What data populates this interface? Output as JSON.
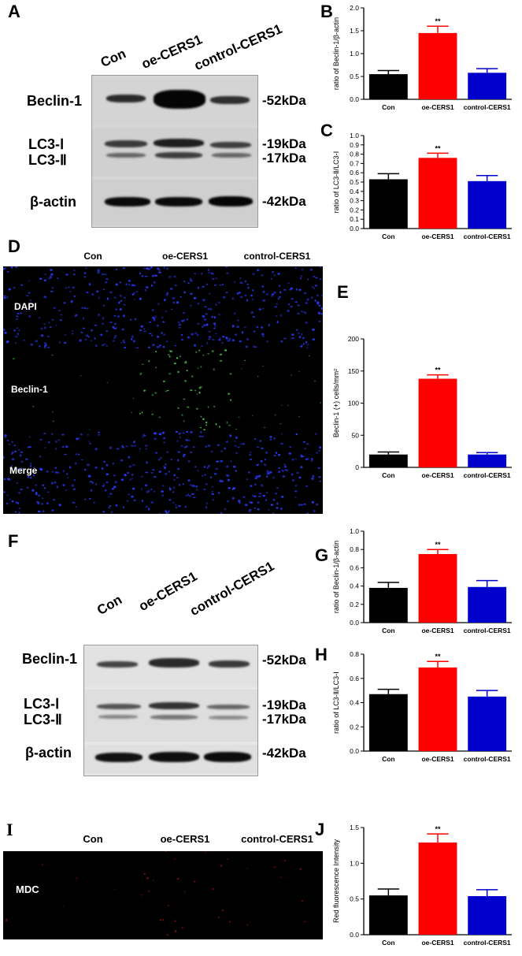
{
  "panels": {
    "A": "A",
    "B": "B",
    "C": "C",
    "D": "D",
    "E": "E",
    "F": "F",
    "G": "G",
    "H": "H",
    "I": "I",
    "J": "J"
  },
  "lanes": [
    "Con",
    "oe-CERS1",
    "control-CERS1"
  ],
  "blot_rows": {
    "beclin": "Beclin-1",
    "lc3_1": "LC3-Ⅰ",
    "lc3_2": "LC3-Ⅱ",
    "actin": "β-actin"
  },
  "kda": {
    "k52": "-52kDa",
    "k19": "-19kDa",
    "k17": "-17kDa",
    "k42": "-42kDa"
  },
  "if_rows_D": [
    "DAPI",
    "Beclin-1",
    "Merge"
  ],
  "if_row_I": "MDC",
  "colors": {
    "con": "#000000",
    "oe": "#ff0000",
    "ctrl": "#0000cc"
  },
  "chart_data": [
    {
      "id": "B",
      "type": "bar",
      "categories": [
        "Con",
        "oe-CERS1",
        "control-CERS1"
      ],
      "values": [
        0.55,
        1.45,
        0.58
      ],
      "errors": [
        0.08,
        0.15,
        0.09
      ],
      "ylabel": "ratio of Beclin-1/β-actin",
      "ylim": [
        0,
        2.0
      ],
      "yticks": [
        0.0,
        0.5,
        1.0,
        1.5,
        2.0
      ],
      "tickfmt": 1,
      "significance": [
        {
          "index": 1,
          "text": "**"
        }
      ]
    },
    {
      "id": "C",
      "type": "bar",
      "categories": [
        "Con",
        "oe-CERS1",
        "control-CERS1"
      ],
      "values": [
        0.53,
        0.76,
        0.51
      ],
      "errors": [
        0.06,
        0.05,
        0.06
      ],
      "ylabel": "ratio of LC3-Ⅱ/LC3-Ⅰ",
      "ylim": [
        0,
        1.0
      ],
      "yticks": [
        0.0,
        0.1,
        0.2,
        0.3,
        0.4,
        0.5,
        0.6,
        0.7,
        0.8,
        0.9,
        1.0
      ],
      "tickfmt": 1,
      "significance": [
        {
          "index": 1,
          "text": "**"
        }
      ]
    },
    {
      "id": "E",
      "type": "bar",
      "categories": [
        "Con",
        "oe-CERS1",
        "control-CERS1"
      ],
      "values": [
        20,
        138,
        20
      ],
      "errors": [
        4,
        6,
        3
      ],
      "ylabel": "Beclin-1 (+) cells/mm²",
      "ylim": [
        0,
        200
      ],
      "yticks": [
        0,
        50,
        100,
        150,
        200
      ],
      "tickfmt": 0,
      "significance": [
        {
          "index": 1,
          "text": "**"
        }
      ]
    },
    {
      "id": "G",
      "type": "bar",
      "categories": [
        "Con",
        "oe-CERS1",
        "control-CERS1"
      ],
      "values": [
        0.38,
        0.75,
        0.39
      ],
      "errors": [
        0.06,
        0.05,
        0.07
      ],
      "ylabel": "ratio of Beclin-1/β-actin",
      "ylim": [
        0,
        1.0
      ],
      "yticks": [
        0.0,
        0.2,
        0.4,
        0.6,
        0.8,
        1.0
      ],
      "tickfmt": 1,
      "significance": [
        {
          "index": 1,
          "text": "**"
        }
      ]
    },
    {
      "id": "H",
      "type": "bar",
      "categories": [
        "Con",
        "oe-CERS1",
        "control-CERS1"
      ],
      "values": [
        0.47,
        0.69,
        0.45
      ],
      "errors": [
        0.04,
        0.05,
        0.05
      ],
      "ylabel": "ratio of LC3-Ⅱ/LC3-Ⅰ",
      "ylim": [
        0,
        0.8
      ],
      "yticks": [
        0.0,
        0.2,
        0.4,
        0.6,
        0.8
      ],
      "tickfmt": 1,
      "significance": [
        {
          "index": 1,
          "text": "**"
        }
      ]
    },
    {
      "id": "J",
      "type": "bar",
      "categories": [
        "Con",
        "oe-CERS1",
        "control-CERS1"
      ],
      "values": [
        0.55,
        1.29,
        0.54
      ],
      "errors": [
        0.09,
        0.12,
        0.09
      ],
      "ylabel": "Red fluorescence Intensity",
      "ylim": [
        0,
        1.5
      ],
      "yticks": [
        0.0,
        0.5,
        1.0,
        1.5
      ],
      "tickfmt": 1,
      "significance": [
        {
          "index": 1,
          "text": "**"
        }
      ]
    }
  ]
}
